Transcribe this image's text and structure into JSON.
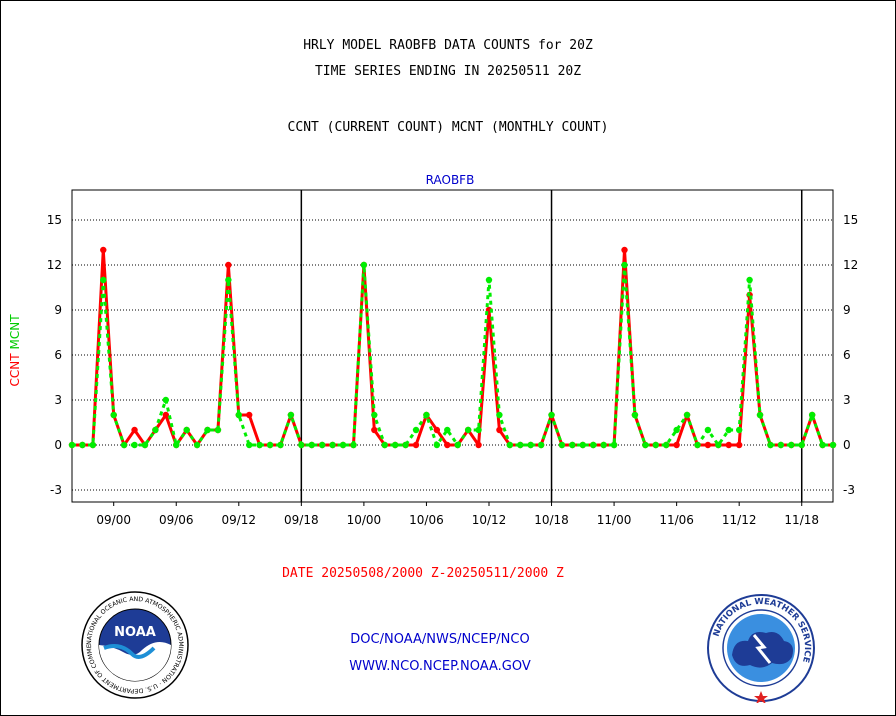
{
  "header": {
    "title_line1": "HRLY MODEL RAOBFB DATA COUNTS for 20Z",
    "title_line2": "TIME SERIES ENDING IN 20250511 20Z",
    "subtitle": "CCNT (CURRENT COUNT) MCNT (MONTHLY COUNT)"
  },
  "footer": {
    "date_range": "DATE 20250508/2000 Z-20250511/2000 Z",
    "org_path": "DOC/NOAA/NWS/NCEP/NCO",
    "website": "WWW.NCO.NCEP.NOAA.GOV"
  },
  "logos": {
    "noaa_text": "NOAA",
    "noaa_ring_text": "NATIONAL OCEANIC AND ATMOSPHERIC ADMINISTRATION · U.S. DEPARTMENT OF COMMERCE",
    "nws_ring_text": "NATIONAL WEATHER SERVICE"
  },
  "colors": {
    "ccnt": "#ff0000",
    "mcnt": "#00ee00",
    "title": "#0000cc",
    "axis": "#000000"
  },
  "chart_data": {
    "type": "line",
    "title": "RAOBFB",
    "ylabel_parts": [
      "CCNT",
      "MCNT"
    ],
    "ylim": [
      -3.8,
      17.0
    ],
    "yticks": [
      -3,
      0,
      3,
      6,
      9,
      12,
      15
    ],
    "ytick_labels": [
      "-3",
      "0",
      "3",
      "6",
      "9",
      "12",
      "15"
    ],
    "grid": "dotted-horizontal",
    "xlim": [
      0,
      73
    ],
    "x": [
      0,
      1,
      2,
      3,
      4,
      5,
      6,
      7,
      8,
      9,
      10,
      11,
      12,
      13,
      14,
      15,
      16,
      17,
      18,
      19,
      20,
      21,
      22,
      23,
      24,
      25,
      26,
      27,
      28,
      29,
      30,
      31,
      32,
      33,
      34,
      35,
      36,
      37,
      38,
      39,
      40,
      41,
      42,
      43,
      44,
      45,
      46,
      47,
      48,
      49,
      50,
      51,
      52,
      53,
      54,
      55,
      56,
      57,
      58,
      59,
      60,
      61,
      62,
      63,
      64,
      65,
      66,
      67,
      68,
      69,
      70,
      71,
      72,
      73
    ],
    "xticks": [
      4,
      10,
      16,
      22,
      28,
      34,
      40,
      46,
      52,
      58,
      64,
      70
    ],
    "xtick_labels": [
      "09/00",
      "09/06",
      "09/12",
      "09/18",
      "10/00",
      "10/06",
      "10/12",
      "10/18",
      "11/00",
      "11/06",
      "11/12",
      "11/18"
    ],
    "day_dividers": [
      22,
      46,
      70
    ],
    "series": [
      {
        "name": "CCNT",
        "color": "#ff0000",
        "values": [
          0,
          0,
          0,
          13,
          2,
          0,
          1,
          0,
          1,
          2,
          0,
          1,
          0,
          1,
          1,
          12,
          2,
          2,
          0,
          0,
          0,
          2,
          0,
          0,
          0,
          0,
          0,
          0,
          12,
          1,
          0,
          0,
          0,
          0,
          2,
          1,
          0,
          0,
          1,
          0,
          9,
          1,
          0,
          0,
          0,
          0,
          2,
          0,
          0,
          0,
          0,
          0,
          0,
          13,
          2,
          0,
          0,
          0,
          0,
          2,
          0,
          0,
          0,
          0,
          0,
          10,
          2,
          0,
          0,
          0,
          0,
          2,
          0,
          0
        ]
      },
      {
        "name": "MCNT",
        "color": "#00ee00",
        "values": [
          0,
          0,
          0,
          11,
          2,
          0,
          0,
          0,
          1,
          3,
          0,
          1,
          0,
          1,
          1,
          11,
          2,
          0,
          0,
          0,
          0,
          2,
          0,
          0,
          0,
          0,
          0,
          0,
          12,
          2,
          0,
          0,
          0,
          1,
          2,
          0,
          1,
          0,
          1,
          1,
          11,
          2,
          0,
          0,
          0,
          0,
          2,
          0,
          0,
          0,
          0,
          0,
          0,
          12,
          2,
          0,
          0,
          0,
          1,
          2,
          0,
          1,
          0,
          1,
          1,
          11,
          2,
          0,
          0,
          0,
          0,
          2,
          0,
          0
        ]
      }
    ]
  }
}
